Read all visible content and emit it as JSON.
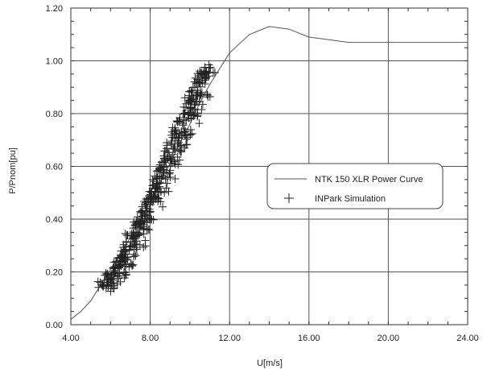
{
  "chart_data": {
    "type": "line",
    "title": "",
    "xlabel": "U[m/s]",
    "ylabel": "P/Pnom[pu]",
    "xlim": [
      4.0,
      24.0
    ],
    "ylim": [
      0.0,
      1.2
    ],
    "x_ticks": [
      "4.00",
      "8.00",
      "12.00",
      "16.00",
      "20.00",
      "24.00"
    ],
    "y_ticks": [
      "0.00",
      "0.20",
      "0.40",
      "0.60",
      "0.80",
      "1.00",
      "1.20"
    ],
    "x_tick_values": [
      4,
      8,
      12,
      16,
      20,
      24
    ],
    "y_tick_values": [
      0,
      0.2,
      0.4,
      0.6,
      0.8,
      1.0,
      1.2
    ],
    "grid": true,
    "legend_position": "center-right",
    "series": [
      {
        "name": "NTK 150 XLR Power Curve",
        "kind": "line",
        "color": "#555555",
        "x": [
          4.0,
          4.5,
          5.0,
          5.5,
          6.0,
          6.5,
          7.0,
          7.5,
          8.0,
          8.5,
          9.0,
          9.5,
          10.0,
          10.5,
          11.0,
          11.5,
          12.0,
          13.0,
          14.0,
          15.0,
          16.0,
          17.0,
          18.0,
          19.0,
          20.0,
          21.0,
          22.0,
          23.0,
          24.0
        ],
        "y": [
          0.02,
          0.05,
          0.09,
          0.15,
          0.21,
          0.27,
          0.33,
          0.4,
          0.47,
          0.54,
          0.61,
          0.69,
          0.76,
          0.84,
          0.91,
          0.97,
          1.03,
          1.1,
          1.13,
          1.12,
          1.09,
          1.08,
          1.07,
          1.07,
          1.07,
          1.07,
          1.07,
          1.07,
          1.07
        ]
      },
      {
        "name": "INPark Simulation",
        "kind": "scatter",
        "marker": "+",
        "color": "#222222",
        "x": [
          5.6,
          5.8,
          5.9,
          6.0,
          6.1,
          6.2,
          6.3,
          6.4,
          6.5,
          6.6,
          6.7,
          6.8,
          6.9,
          7.0,
          7.1,
          7.2,
          7.3,
          7.4,
          7.5,
          7.6,
          7.7,
          7.8,
          7.9,
          8.0,
          8.1,
          8.2,
          8.3,
          8.4,
          8.5,
          8.6,
          8.7,
          8.8,
          8.9,
          9.0,
          9.1,
          9.2,
          9.3,
          9.4,
          9.5,
          9.6,
          9.7,
          9.8,
          9.9,
          10.0,
          10.1,
          10.2,
          10.3,
          10.4,
          10.5,
          10.6,
          10.7,
          10.8,
          10.9,
          11.0,
          6.0,
          6.3,
          6.6,
          6.9,
          7.2,
          7.5,
          7.8,
          8.1,
          8.4,
          8.7,
          9.0,
          9.3,
          9.6,
          9.9,
          10.2,
          10.5,
          10.8,
          6.5,
          7.0,
          7.4,
          7.8,
          8.2,
          8.6,
          9.0,
          9.4,
          9.8,
          10.2,
          10.6
        ],
        "y": [
          0.15,
          0.16,
          0.17,
          0.18,
          0.19,
          0.2,
          0.21,
          0.22,
          0.23,
          0.24,
          0.26,
          0.27,
          0.29,
          0.3,
          0.32,
          0.34,
          0.35,
          0.37,
          0.39,
          0.4,
          0.42,
          0.44,
          0.46,
          0.48,
          0.49,
          0.51,
          0.53,
          0.55,
          0.57,
          0.59,
          0.6,
          0.62,
          0.64,
          0.66,
          0.68,
          0.7,
          0.72,
          0.73,
          0.75,
          0.77,
          0.79,
          0.81,
          0.83,
          0.85,
          0.86,
          0.88,
          0.9,
          0.91,
          0.93,
          0.94,
          0.95,
          0.96,
          0.96,
          0.97,
          0.13,
          0.16,
          0.19,
          0.23,
          0.27,
          0.31,
          0.36,
          0.41,
          0.46,
          0.51,
          0.57,
          0.62,
          0.67,
          0.72,
          0.78,
          0.83,
          0.88,
          0.25,
          0.33,
          0.38,
          0.43,
          0.49,
          0.55,
          0.61,
          0.67,
          0.73,
          0.81,
          0.88
        ]
      }
    ]
  }
}
